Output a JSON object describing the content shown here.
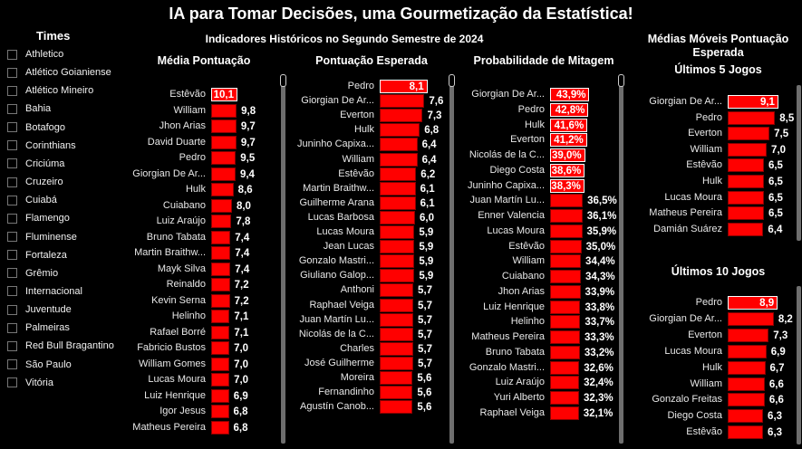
{
  "title": "IA para Tomar Decisões, uma Gourmetização da Estatística!",
  "subtitle": "Indicadores Históricos no Segundo Semestre de 2024",
  "teams": {
    "title": "Times",
    "items": [
      "Athletico",
      "Atlético Goianiense",
      "Atlético Mineiro",
      "Bahia",
      "Botafogo",
      "Corinthians",
      "Criciúma",
      "Cruzeiro",
      "Cuiabá",
      "Flamengo",
      "Fluminense",
      "Fortaleza",
      "Grêmio",
      "Internacional",
      "Juventude",
      "Palmeiras",
      "Red Bull Bragantino",
      "São Paulo",
      "Vitória"
    ]
  },
  "right_title": "Médias Móveis Pontuação Esperada",
  "colors": {
    "bar": "#ff0000",
    "background": "#000000"
  },
  "chart_data": [
    {
      "type": "bar",
      "title": "Média Pontuação",
      "suffix": "",
      "categories": [
        "Estêvão",
        "William",
        "Jhon Arias",
        "David Duarte",
        "Pedro",
        "Giorgian De Ar...",
        "Hulk",
        "Cuiabano",
        "Luiz Araújo",
        "Bruno Tabata",
        "Martin Braithw...",
        "Mayk Silva",
        "Reinaldo",
        "Kevin Serna",
        "Helinho",
        "Rafael Borré",
        "Fabricio Bustos",
        "William Gomes",
        "Lucas Moura",
        "Luiz Henrique",
        "Igor Jesus",
        "Matheus Pereira"
      ],
      "values": [
        10.1,
        9.8,
        9.7,
        9.7,
        9.5,
        9.4,
        8.6,
        8.0,
        7.8,
        7.4,
        7.4,
        7.4,
        7.2,
        7.2,
        7.1,
        7.1,
        7.0,
        7.0,
        7.0,
        6.9,
        6.8,
        6.8
      ]
    },
    {
      "type": "bar",
      "title": "Pontuação Esperada",
      "suffix": "",
      "categories": [
        "Pedro",
        "Giorgian De Ar...",
        "Everton",
        "Hulk",
        "Juninho Capixa...",
        "William",
        "Estêvão",
        "Martin Braithw...",
        "Guilherme Arana",
        "Lucas Barbosa",
        "Lucas Moura",
        "Jean Lucas",
        "Gonzalo Mastri...",
        "Giuliano Galop...",
        "Anthoni",
        "Raphael Veiga",
        "Juan Martín Lu...",
        "Nicolás de la C...",
        "Charles",
        "José Guilherme",
        "Moreira",
        "Fernandinho",
        "Agustín Canob..."
      ],
      "values": [
        8.1,
        7.6,
        7.3,
        6.8,
        6.4,
        6.4,
        6.2,
        6.1,
        6.1,
        6.0,
        5.9,
        5.9,
        5.9,
        5.9,
        5.7,
        5.7,
        5.7,
        5.7,
        5.7,
        5.7,
        5.6,
        5.6,
        5.6
      ]
    },
    {
      "type": "bar",
      "title": "Probabilidade de Mitagem",
      "suffix": "%",
      "categories": [
        "Giorgian De Ar...",
        "Pedro",
        "Hulk",
        "Everton",
        "Nicolás de la C...",
        "Diego Costa",
        "Juninho Capixa...",
        "Juan Martín Lu...",
        "Enner Valencia",
        "Lucas Moura",
        "Estêvão",
        "William",
        "Cuiabano",
        "Jhon Arias",
        "Luiz Henrique",
        "Helinho",
        "Matheus Pereira",
        "Bruno Tabata",
        "Gonzalo Mastri...",
        "Luiz Araújo",
        "Yuri Alberto",
        "Raphael Veiga"
      ],
      "values": [
        43.9,
        42.8,
        41.6,
        41.2,
        39.0,
        38.6,
        38.3,
        36.5,
        36.1,
        35.9,
        35.0,
        34.4,
        34.3,
        33.9,
        33.8,
        33.7,
        33.3,
        33.2,
        32.6,
        32.4,
        32.3,
        32.1
      ]
    },
    {
      "type": "bar",
      "title": "Últimos 5 Jogos",
      "suffix": "",
      "categories": [
        "Giorgian De Ar...",
        "Pedro",
        "Everton",
        "William",
        "Estêvão",
        "Hulk",
        "Lucas Moura",
        "Matheus Pereira",
        "Damián Suárez"
      ],
      "values": [
        9.1,
        8.5,
        7.5,
        7.0,
        6.5,
        6.5,
        6.5,
        6.5,
        6.4
      ]
    },
    {
      "type": "bar",
      "title": "Últimos 10 Jogos",
      "suffix": "",
      "categories": [
        "Pedro",
        "Giorgian De Ar...",
        "Everton",
        "Lucas Moura",
        "Hulk",
        "William",
        "Gonzalo Freitas",
        "Diego Costa",
        "Estêvão"
      ],
      "values": [
        8.9,
        8.2,
        7.3,
        6.9,
        6.7,
        6.6,
        6.6,
        6.3,
        6.3
      ]
    }
  ]
}
